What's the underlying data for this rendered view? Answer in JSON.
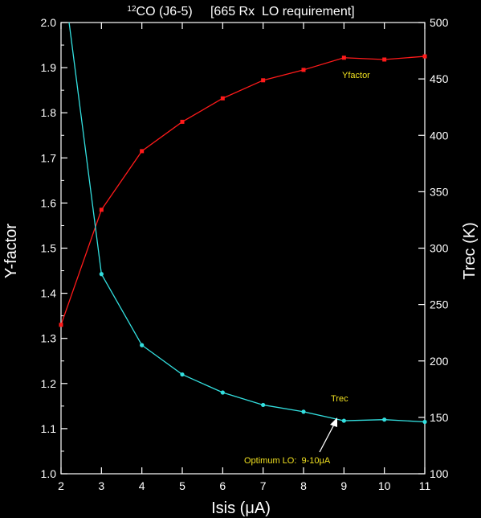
{
  "chart_data": {
    "type": "line",
    "title": {
      "sup": "12",
      "main": "CO (J6-5)     [665 Rx  LO requirement]"
    },
    "xlabel": "Isis (μA)",
    "ylabel_left": "Y-factor",
    "ylabel_right": "Trec (K)",
    "xlim": [
      2,
      11
    ],
    "ylim_left": [
      1.0,
      2.0
    ],
    "ylim_right": [
      100,
      500
    ],
    "x_ticks": [
      "2",
      "3",
      "4",
      "5",
      "6",
      "7",
      "8",
      "9",
      "10",
      "11"
    ],
    "y_left_ticks": [
      "1.0",
      "1.1",
      "1.2",
      "1.3",
      "1.4",
      "1.5",
      "1.6",
      "1.7",
      "1.8",
      "1.9",
      "2.0"
    ],
    "y_right_ticks": [
      "100",
      "150",
      "200",
      "250",
      "300",
      "350",
      "400",
      "450",
      "500"
    ],
    "series": [
      {
        "name": "Yfactor",
        "axis": "left",
        "color": "#ff1a1a",
        "x": [
          2,
          3,
          4,
          5,
          6,
          7,
          8,
          9,
          10,
          11
        ],
        "y": [
          1.33,
          1.585,
          1.715,
          1.78,
          1.832,
          1.872,
          1.895,
          1.922,
          1.918,
          1.925
        ]
      },
      {
        "name": "Trec",
        "axis": "right",
        "color": "#33e0e0",
        "x": [
          2.2,
          3,
          4,
          5,
          6,
          7,
          8,
          9,
          10,
          11
        ],
        "y": [
          500,
          277,
          214,
          188,
          172,
          161,
          155,
          147,
          148,
          146
        ]
      }
    ],
    "annotations": {
      "yfactor_label": "Yfactor",
      "trec_label": "Trec",
      "optimum_prefix": "Optimum LO:  9-10",
      "optimum_unit": "μA"
    }
  }
}
